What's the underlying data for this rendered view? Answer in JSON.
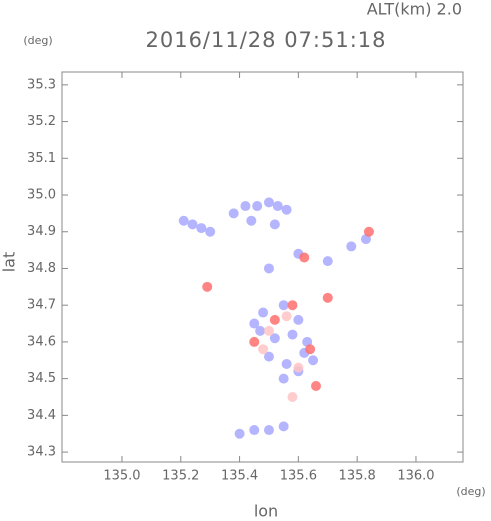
{
  "chart_data": {
    "type": "scatter",
    "title": "2016/11/28 07:51:18",
    "subtitle": "ALT(km) 2.0",
    "y_unit": "(deg)",
    "x_unit": "(deg)",
    "xlabel": "lon",
    "ylabel": "lat",
    "xlim": [
      134.796,
      136.16
    ],
    "ylim": [
      34.273,
      35.335
    ],
    "xticks": [
      {
        "value": 135.0,
        "label": "135.0"
      },
      135.2,
      135.4,
      135.6,
      135.8,
      {
        "value": 136.0,
        "label": "136.0"
      }
    ],
    "yticks": [
      34.3,
      34.4,
      34.5,
      34.6,
      34.7,
      34.8,
      34.9,
      {
        "value": 35.0,
        "label": "35.0"
      },
      35.1,
      35.2,
      35.3
    ],
    "series": [
      {
        "color": "#a8a8ff",
        "x": [
          135.21,
          135.24,
          135.27,
          135.3,
          135.38,
          135.42,
          135.46,
          135.5,
          135.53,
          135.56,
          135.44,
          135.52,
          135.48,
          135.55,
          135.6,
          135.47,
          135.52,
          135.58,
          135.63,
          135.5,
          135.56,
          135.62,
          135.55,
          135.6,
          135.65,
          135.4,
          135.45,
          135.5,
          135.55,
          135.6,
          135.7,
          135.78,
          135.83,
          135.5,
          135.45
        ],
        "y": [
          34.93,
          34.92,
          34.91,
          34.9,
          34.95,
          34.97,
          34.97,
          34.98,
          34.97,
          34.96,
          34.93,
          34.92,
          34.68,
          34.7,
          34.66,
          34.63,
          34.61,
          34.62,
          34.6,
          34.56,
          34.54,
          34.57,
          34.5,
          34.52,
          34.55,
          34.35,
          34.36,
          34.36,
          34.37,
          34.84,
          34.82,
          34.86,
          34.88,
          34.8,
          34.65
        ]
      },
      {
        "color": "#ff6e6e",
        "x": [
          135.29,
          135.66,
          135.58,
          135.64,
          135.62,
          135.52,
          135.45,
          135.7,
          135.84
        ],
        "y": [
          34.75,
          34.48,
          34.7,
          34.58,
          34.83,
          34.66,
          34.6,
          34.72,
          34.9
        ]
      },
      {
        "color": "#ffc4c4",
        "x": [
          135.5,
          135.56,
          135.6,
          135.48,
          135.58
        ],
        "y": [
          34.63,
          34.67,
          34.53,
          34.58,
          34.45
        ]
      }
    ]
  }
}
